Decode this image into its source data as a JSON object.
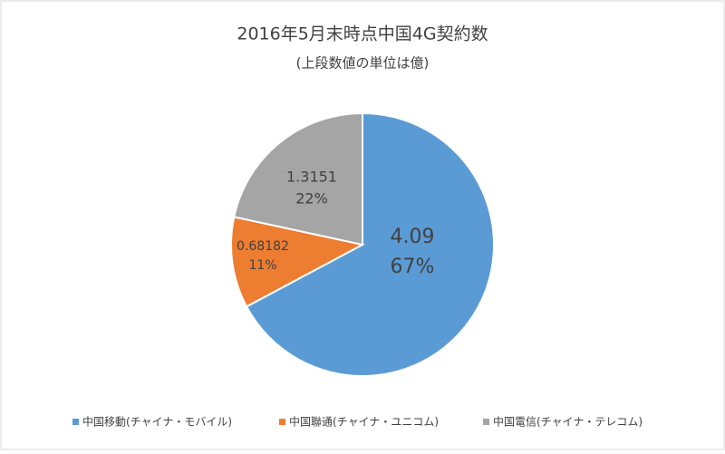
{
  "chart_data": {
    "type": "pie",
    "title": "2016年5月末時点中国4G契約数",
    "subtitle": "(上段数値の単位は億)",
    "categories": [
      "中国移動(チャイナ・モバイル)",
      "中国聯通(チャイナ・ユニコム)",
      "中国電信(チャイナ・テレコム)"
    ],
    "values": [
      4.09,
      0.68182,
      1.3151
    ],
    "percent_labels": [
      "67%",
      "11%",
      "22%"
    ],
    "colors": [
      "#5b9bd5",
      "#ed7d31",
      "#a5a5a5"
    ],
    "legend": "bottom"
  }
}
